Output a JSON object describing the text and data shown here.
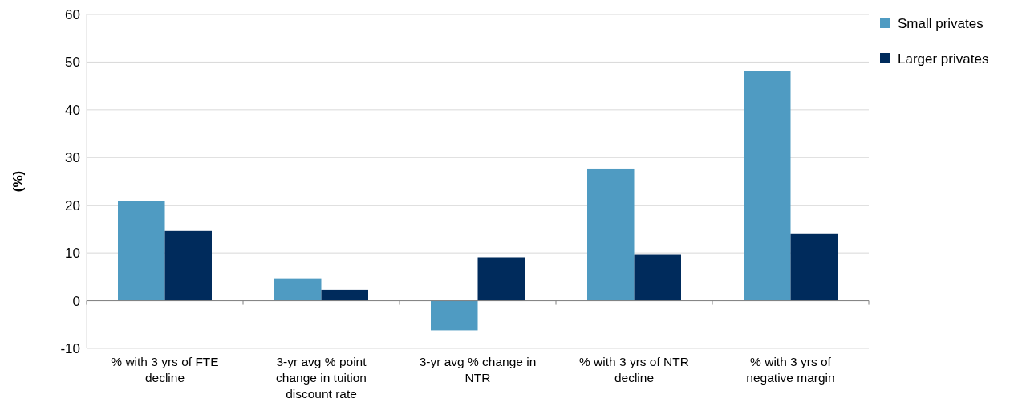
{
  "chart_data": {
    "type": "bar",
    "ylabel": "(%)",
    "categories": [
      "% with 3 yrs of FTE decline",
      "3-yr avg % point change in tuition discount rate",
      "3-yr avg % change in NTR",
      "% with 3 yrs of NTR decline",
      "% with 3 yrs of negative margin"
    ],
    "series": [
      {
        "name": "Small privates",
        "color": "#4f9bc2",
        "values": [
          20.8,
          4.7,
          -6.2,
          27.7,
          48.2
        ]
      },
      {
        "name": "Larger privates",
        "color": "#002b5c",
        "values": [
          14.6,
          2.3,
          9.1,
          9.6,
          14.1
        ]
      }
    ],
    "ylim": [
      -10,
      60
    ],
    "yticks": [
      -10,
      0,
      10,
      20,
      30,
      40,
      50,
      60
    ],
    "grid": "y",
    "legend": "right"
  }
}
